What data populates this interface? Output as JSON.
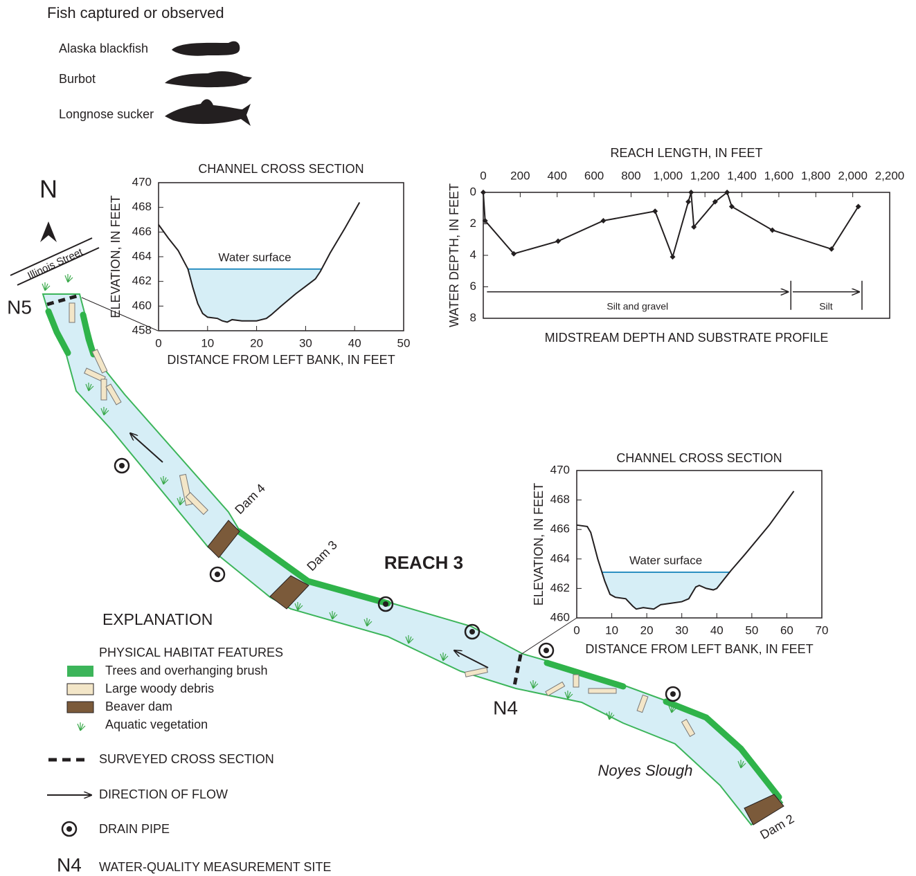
{
  "fish": {
    "title": "Fish captured or observed",
    "species": [
      "Alaska blackfish",
      "Burbot",
      "Longnose sucker"
    ]
  },
  "map": {
    "north": "N",
    "street": "Illinois Street",
    "reach": "REACH 3",
    "sites": [
      "N5",
      "N4"
    ],
    "dams": [
      "Dam 4",
      "Dam 3",
      "Dam 2"
    ],
    "waterbody": "Noyes Slough"
  },
  "explanation": {
    "title": "EXPLANATION",
    "habitat_title": "PHYSICAL HABITAT FEATURES",
    "habitat": [
      "Trees and overhanging brush",
      "Large woody debris",
      "Beaver dam",
      "Aquatic vegetation"
    ],
    "symbols": [
      "SURVEYED CROSS SECTION",
      "DIRECTION OF FLOW",
      "DRAIN PIPE"
    ],
    "site_example": "N4",
    "site_label": "WATER-QUALITY MEASUREMENT SITE"
  },
  "chart_data": [
    {
      "type": "area",
      "title": "CHANNEL CROSS SECTION",
      "x_label": "DISTANCE FROM LEFT BANK, IN FEET",
      "y_label": "ELEVATION, IN FEET",
      "annotation": "Water surface",
      "water_surface": 463,
      "x": [
        0,
        2,
        4,
        6,
        7,
        8,
        9,
        10,
        12,
        13,
        14,
        15,
        17,
        20,
        22,
        23,
        25,
        28,
        30,
        32,
        33,
        35,
        38,
        41
      ],
      "values": [
        466.6,
        465.5,
        464.5,
        463,
        461.5,
        460.2,
        459.4,
        459.1,
        459,
        458.8,
        458.7,
        458.9,
        458.8,
        458.8,
        459,
        459.3,
        460,
        461,
        461.6,
        462.2,
        462.8,
        464.3,
        466.3,
        468.4
      ],
      "xlim": [
        0,
        50
      ],
      "ylim": [
        458,
        470
      ],
      "xticks": [
        0,
        10,
        20,
        30,
        40,
        50
      ],
      "yticks": [
        458,
        460,
        462,
        464,
        466,
        468,
        470
      ],
      "line_color": "#231f20",
      "water_color": "#2a8fc1",
      "fill_color": "#d6eef6"
    },
    {
      "type": "line",
      "title": "MIDSTREAM DEPTH AND SUBSTRATE PROFILE",
      "x_label": "REACH LENGTH, IN FEET",
      "y_label": "WATER DEPTH, IN FEET",
      "x": [
        0,
        10,
        165,
        405,
        650,
        930,
        1025,
        1110,
        1125,
        1140,
        1255,
        1320,
        1345,
        1565,
        1885,
        2030
      ],
      "values": [
        0,
        1.8,
        3.9,
        3.1,
        1.8,
        1.2,
        4.1,
        0.6,
        0,
        2.2,
        0.6,
        0,
        0.9,
        2.4,
        3.6,
        0.9
      ],
      "xlim": [
        0,
        2200
      ],
      "ylim": [
        8,
        0
      ],
      "xticks": [
        0,
        200,
        400,
        600,
        800,
        {
          "value": 1000,
          "label": "1,000"
        },
        {
          "value": 1200,
          "label": "1,200"
        },
        {
          "value": 1400,
          "label": "1,400"
        },
        {
          "value": 1600,
          "label": "1,600"
        },
        {
          "value": 1800,
          "label": "1,800"
        },
        {
          "value": 2000,
          "label": "2,000"
        },
        {
          "value": 2200,
          "label": "2,200"
        }
      ],
      "yticks": [
        0,
        2,
        4,
        6,
        8
      ],
      "substrate": [
        {
          "label": "Silt and gravel",
          "from": 20,
          "to": 1650
        },
        {
          "label": "Silt",
          "from": 1675,
          "to": 2035
        }
      ],
      "line_color": "#231f20"
    },
    {
      "type": "area",
      "title": "CHANNEL CROSS SECTION",
      "x_label": "DISTANCE FROM LEFT BANK, IN FEET",
      "y_label": "ELEVATION, IN FEET",
      "annotation": "Water surface",
      "water_surface": 463.1,
      "x": [
        0,
        3,
        4,
        6,
        8,
        9.5,
        11,
        14,
        16,
        17,
        19,
        22,
        24,
        27,
        30,
        32,
        33,
        34,
        35,
        37,
        39,
        40,
        42,
        44,
        48,
        55,
        62
      ],
      "values": [
        466.3,
        466.2,
        465.8,
        464,
        462.5,
        461.6,
        461.4,
        461.3,
        460.8,
        460.6,
        460.7,
        460.6,
        460.9,
        461,
        461.1,
        461.3,
        461.7,
        462.1,
        462.2,
        462,
        461.9,
        462,
        462.6,
        463.2,
        464.3,
        466.3,
        468.6
      ],
      "xlim": [
        0,
        70
      ],
      "ylim": [
        460,
        470
      ],
      "xticks": [
        0,
        10,
        20,
        30,
        40,
        50,
        60,
        70
      ],
      "yticks": [
        460,
        462,
        464,
        466,
        468,
        470
      ],
      "line_color": "#231f20",
      "water_color": "#2a8fc1",
      "fill_color": "#d6eef6"
    }
  ]
}
